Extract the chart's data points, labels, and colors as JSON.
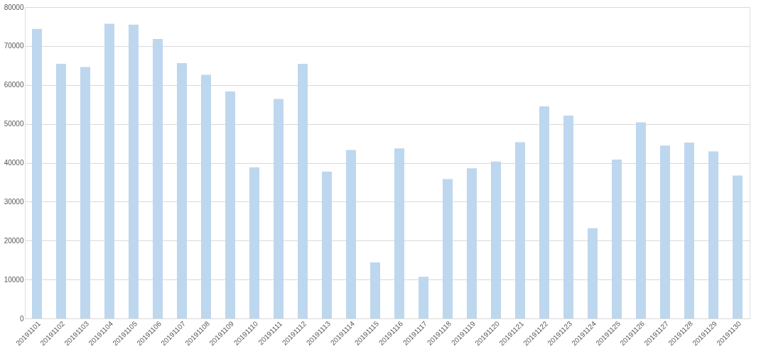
{
  "chart_data": {
    "type": "bar",
    "categories": [
      "20191101",
      "20191102",
      "20191103",
      "20191104",
      "20191105",
      "20191106",
      "20191107",
      "20191108",
      "20191109",
      "20191110",
      "20191111",
      "20191112",
      "20191113",
      "20191114",
      "20191115",
      "20191116",
      "20191117",
      "20191118",
      "20191119",
      "20191120",
      "20191121",
      "20191122",
      "20191123",
      "20191124",
      "20191125",
      "20191126",
      "20191127",
      "20191128",
      "20191129",
      "20191130"
    ],
    "values": [
      74400,
      65400,
      64600,
      75700,
      75500,
      71800,
      65600,
      62600,
      58300,
      38800,
      56400,
      65400,
      37700,
      43300,
      14400,
      43700,
      10700,
      35800,
      38600,
      40300,
      45300,
      54500,
      52100,
      23200,
      40800,
      50400,
      44400,
      45200,
      42900,
      36700
    ],
    "color": "#bdd7ee",
    "ylim": [
      0,
      80000
    ],
    "yticks": [
      0,
      10000,
      20000,
      30000,
      40000,
      50000,
      60000,
      70000,
      80000
    ],
    "grid": "y"
  }
}
